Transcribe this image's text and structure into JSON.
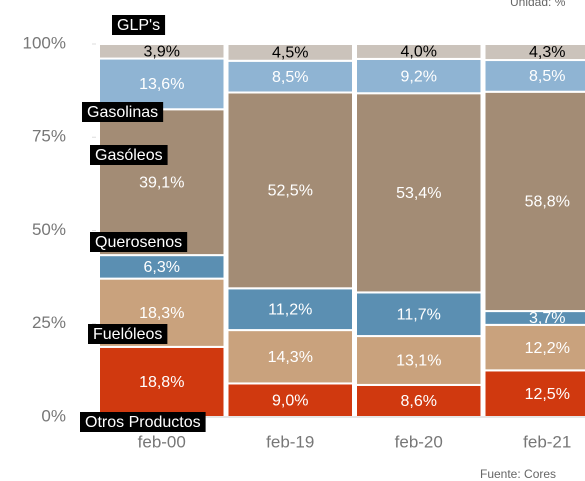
{
  "chart_data": {
    "type": "stacked_bar",
    "unit_note": "Unidad: %",
    "source": "Fuente: Cores",
    "categories": [
      "feb-00",
      "feb-19",
      "feb-20",
      "feb-21"
    ],
    "series": [
      {
        "name": "Otros Productos",
        "color": "#d0390f",
        "values": [
          18.8,
          9.0,
          8.6,
          12.5
        ],
        "value_labels": [
          "18,8%",
          "9,0%",
          "8,6%",
          "12,5%"
        ]
      },
      {
        "name": "Fuelóleos",
        "color": "#c9a27d",
        "values": [
          18.3,
          14.3,
          13.1,
          12.2
        ],
        "value_labels": [
          "18,3%",
          "14,3%",
          "13,1%",
          "12,2%"
        ]
      },
      {
        "name": "Querosenos",
        "color": "#5b8fb2",
        "values": [
          6.3,
          11.2,
          11.7,
          3.7
        ],
        "value_labels": [
          "6,3%",
          "11,2%",
          "11,7%",
          "3,7%"
        ]
      },
      {
        "name": "Gasóleos",
        "color": "#a38c75",
        "values": [
          39.1,
          52.5,
          53.4,
          58.8
        ],
        "value_labels": [
          "39,1%",
          "52,5%",
          "53,4%",
          "58,8%"
        ]
      },
      {
        "name": "Gasolinas",
        "color": "#8fb4d3",
        "values": [
          13.6,
          8.5,
          9.2,
          8.5
        ],
        "value_labels": [
          "13,6%",
          "8,5%",
          "9,2%",
          "8,5%"
        ]
      },
      {
        "name": "GLP's",
        "color": "#cbc3bb",
        "values": [
          3.9,
          4.5,
          4.0,
          4.3
        ],
        "value_labels": [
          "3,9%",
          "4,5%",
          "4,0%",
          "4,3%"
        ]
      }
    ],
    "ylim": [
      0,
      100
    ],
    "yticks": [
      {
        "value": 0,
        "label": "0%"
      },
      {
        "value": 25,
        "label": "25%"
      },
      {
        "value": 50,
        "label": "50%"
      },
      {
        "value": 75,
        "label": "75%"
      },
      {
        "value": 100,
        "label": "100%"
      }
    ]
  }
}
